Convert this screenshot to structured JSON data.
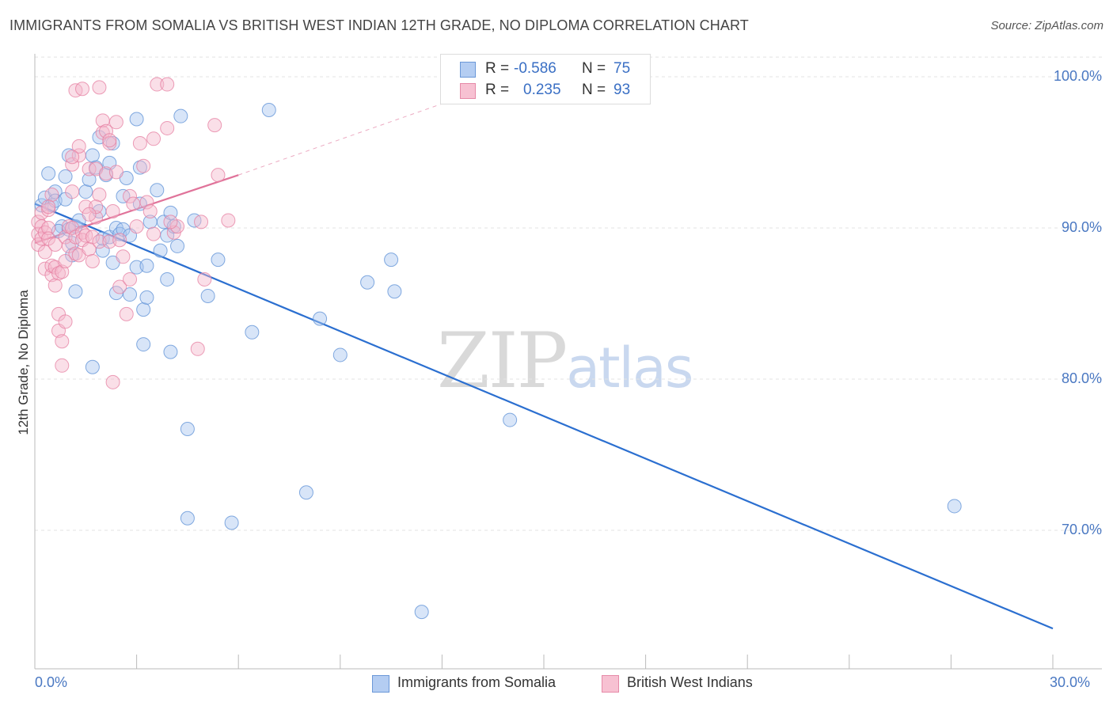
{
  "title": "IMMIGRANTS FROM SOMALIA VS BRITISH WEST INDIAN 12TH GRADE, NO DIPLOMA CORRELATION CHART",
  "source": "Source: ZipAtlas.com",
  "watermark": {
    "zip": "ZIP",
    "atlas": "atlas"
  },
  "legend_top": {
    "rows": [
      {
        "r_label": "R =",
        "r_value": "-0.586",
        "n_label": "N =",
        "n_value": "75"
      },
      {
        "r_label": "R =",
        "r_value": "0.235",
        "n_label": "N =",
        "n_value": "93"
      }
    ]
  },
  "colors": {
    "somalia_fill": "#a9c6f0",
    "somalia_stroke": "#5b8fd6",
    "somalia_line": "#2b6fd0",
    "bwi_fill": "#f5b8cb",
    "bwi_stroke": "#e57ea0",
    "bwi_line": "#e0739a",
    "grid": "#e3e3e3",
    "tick_label": "#4a78c2"
  },
  "chart_data": {
    "type": "scatter",
    "title": "IMMIGRANTS FROM SOMALIA VS BRITISH WEST INDIAN 12TH GRADE, NO DIPLOMA CORRELATION CHART",
    "xlabel": "",
    "ylabel": "12th Grade, No Diploma",
    "xlim": [
      0,
      30
    ],
    "ylim": [
      61,
      102
    ],
    "x_ticks": [
      "0.0%",
      "30.0%"
    ],
    "y_ticks": [
      {
        "value": 100,
        "label": "100.0%"
      },
      {
        "value": 90,
        "label": "90.0%"
      },
      {
        "value": 80,
        "label": "80.0%"
      },
      {
        "value": 70,
        "label": "70.0%"
      }
    ],
    "grid": true,
    "legend_position": "bottom",
    "series": [
      {
        "name": "Immigrants from Somalia",
        "R": -0.586,
        "N": 75,
        "trend": {
          "x0": 0.0,
          "y0": 91.6,
          "x1": 30.0,
          "y1": 63.5
        },
        "points": [
          [
            0.2,
            91.5
          ],
          [
            0.3,
            92.0
          ],
          [
            0.4,
            93.6
          ],
          [
            0.5,
            91.5
          ],
          [
            0.6,
            92.4
          ],
          [
            0.6,
            91.8
          ],
          [
            0.8,
            90.1
          ],
          [
            0.7,
            89.8
          ],
          [
            0.9,
            91.9
          ],
          [
            0.9,
            93.4
          ],
          [
            1.0,
            94.8
          ],
          [
            1.0,
            89.9
          ],
          [
            1.1,
            89.0
          ],
          [
            1.2,
            90.1
          ],
          [
            1.1,
            88.2
          ],
          [
            1.3,
            90.5
          ],
          [
            1.5,
            92.4
          ],
          [
            1.6,
            93.2
          ],
          [
            1.7,
            94.8
          ],
          [
            1.8,
            94.0
          ],
          [
            1.9,
            91.1
          ],
          [
            1.9,
            96.0
          ],
          [
            2.0,
            88.5
          ],
          [
            2.0,
            89.3
          ],
          [
            2.1,
            93.5
          ],
          [
            2.2,
            94.3
          ],
          [
            2.3,
            95.6
          ],
          [
            2.2,
            89.4
          ],
          [
            2.3,
            87.7
          ],
          [
            2.4,
            90.0
          ],
          [
            2.4,
            85.7
          ],
          [
            2.5,
            89.6
          ],
          [
            2.6,
            92.1
          ],
          [
            2.6,
            89.9
          ],
          [
            2.7,
            93.3
          ],
          [
            2.8,
            89.5
          ],
          [
            2.8,
            85.6
          ],
          [
            3.0,
            87.4
          ],
          [
            3.0,
            97.2
          ],
          [
            3.1,
            94.0
          ],
          [
            3.1,
            91.6
          ],
          [
            3.2,
            82.3
          ],
          [
            3.2,
            84.6
          ],
          [
            3.3,
            85.4
          ],
          [
            3.3,
            87.5
          ],
          [
            3.4,
            90.4
          ],
          [
            3.6,
            92.5
          ],
          [
            3.7,
            88.5
          ],
          [
            3.8,
            90.4
          ],
          [
            3.9,
            89.5
          ],
          [
            3.9,
            86.6
          ],
          [
            4.0,
            91.0
          ],
          [
            4.0,
            81.8
          ],
          [
            4.1,
            90.1
          ],
          [
            4.2,
            88.8
          ],
          [
            4.3,
            97.4
          ],
          [
            4.5,
            76.7
          ],
          [
            4.5,
            70.8
          ],
          [
            4.7,
            90.5
          ],
          [
            5.1,
            85.5
          ],
          [
            5.4,
            87.9
          ],
          [
            5.8,
            70.5
          ],
          [
            6.4,
            83.1
          ],
          [
            6.9,
            97.8
          ],
          [
            8.0,
            72.5
          ],
          [
            8.4,
            84.0
          ],
          [
            9.0,
            81.6
          ],
          [
            9.8,
            86.4
          ],
          [
            10.5,
            87.9
          ],
          [
            10.6,
            85.8
          ],
          [
            11.4,
            64.6
          ],
          [
            14.0,
            77.3
          ],
          [
            27.1,
            71.6
          ],
          [
            1.2,
            85.8
          ],
          [
            1.7,
            80.8
          ]
        ]
      },
      {
        "name": "British West Indians",
        "R": 0.235,
        "N": 93,
        "trend": {
          "x0": 0.0,
          "y0": 89.0,
          "x1": 6.0,
          "y1": 93.5
        },
        "trend_dashed": {
          "x0": 6.0,
          "y0": 93.5,
          "x1": 13.0,
          "y1": 99.0
        },
        "points": [
          [
            0.1,
            90.4
          ],
          [
            0.1,
            89.6
          ],
          [
            0.1,
            88.9
          ],
          [
            0.2,
            90.1
          ],
          [
            0.2,
            89.3
          ],
          [
            0.2,
            91.0
          ],
          [
            0.3,
            88.4
          ],
          [
            0.3,
            87.3
          ],
          [
            0.3,
            89.7
          ],
          [
            0.4,
            90.0
          ],
          [
            0.4,
            89.3
          ],
          [
            0.4,
            91.2
          ],
          [
            0.5,
            86.9
          ],
          [
            0.5,
            87.5
          ],
          [
            0.6,
            88.9
          ],
          [
            0.6,
            86.2
          ],
          [
            0.6,
            87.4
          ],
          [
            0.7,
            83.2
          ],
          [
            0.7,
            84.3
          ],
          [
            0.7,
            87.0
          ],
          [
            0.8,
            82.5
          ],
          [
            0.8,
            80.9
          ],
          [
            0.8,
            87.1
          ],
          [
            0.9,
            83.8
          ],
          [
            0.9,
            89.4
          ],
          [
            0.9,
            87.8
          ],
          [
            1.0,
            90.1
          ],
          [
            1.0,
            88.8
          ],
          [
            1.1,
            92.4
          ],
          [
            1.1,
            90.0
          ],
          [
            1.1,
            94.2
          ],
          [
            1.2,
            88.3
          ],
          [
            1.2,
            89.4
          ],
          [
            1.3,
            94.8
          ],
          [
            1.3,
            95.4
          ],
          [
            1.3,
            88.2
          ],
          [
            1.4,
            89.7
          ],
          [
            1.4,
            89.2
          ],
          [
            1.5,
            91.4
          ],
          [
            1.5,
            89.5
          ],
          [
            1.6,
            93.9
          ],
          [
            1.6,
            88.6
          ],
          [
            1.7,
            87.8
          ],
          [
            1.7,
            89.4
          ],
          [
            1.8,
            90.7
          ],
          [
            1.8,
            93.9
          ],
          [
            1.9,
            92.2
          ],
          [
            1.9,
            89.1
          ],
          [
            2.0,
            97.1
          ],
          [
            2.0,
            96.3
          ],
          [
            2.1,
            96.4
          ],
          [
            2.1,
            93.6
          ],
          [
            2.2,
            95.6
          ],
          [
            2.2,
            89.1
          ],
          [
            2.3,
            91.1
          ],
          [
            2.3,
            79.8
          ],
          [
            2.4,
            97.0
          ],
          [
            2.4,
            93.7
          ],
          [
            2.5,
            86.1
          ],
          [
            2.5,
            89.2
          ],
          [
            2.6,
            88.1
          ],
          [
            2.7,
            84.3
          ],
          [
            2.8,
            86.6
          ],
          [
            2.8,
            92.1
          ],
          [
            2.9,
            91.6
          ],
          [
            3.0,
            90.1
          ],
          [
            3.1,
            95.6
          ],
          [
            3.2,
            94.1
          ],
          [
            3.3,
            91.7
          ],
          [
            3.4,
            91.1
          ],
          [
            3.5,
            89.6
          ],
          [
            3.5,
            95.9
          ],
          [
            3.6,
            99.5
          ],
          [
            3.9,
            99.5
          ],
          [
            3.9,
            96.6
          ],
          [
            4.1,
            89.7
          ],
          [
            4.2,
            90.1
          ],
          [
            4.8,
            82.0
          ],
          [
            4.9,
            90.4
          ],
          [
            5.0,
            86.6
          ],
          [
            5.3,
            96.8
          ],
          [
            5.4,
            93.5
          ],
          [
            5.7,
            90.5
          ],
          [
            1.2,
            99.1
          ],
          [
            1.4,
            99.2
          ],
          [
            1.9,
            99.3
          ],
          [
            4.0,
            90.4
          ],
          [
            0.5,
            92.2
          ],
          [
            1.1,
            94.7
          ],
          [
            1.8,
            91.4
          ],
          [
            2.2,
            95.8
          ],
          [
            0.4,
            91.4
          ],
          [
            1.6,
            90.9
          ]
        ]
      }
    ]
  },
  "legend_bottom": [
    {
      "label": "Immigrants from Somalia"
    },
    {
      "label": "British West Indians"
    }
  ]
}
